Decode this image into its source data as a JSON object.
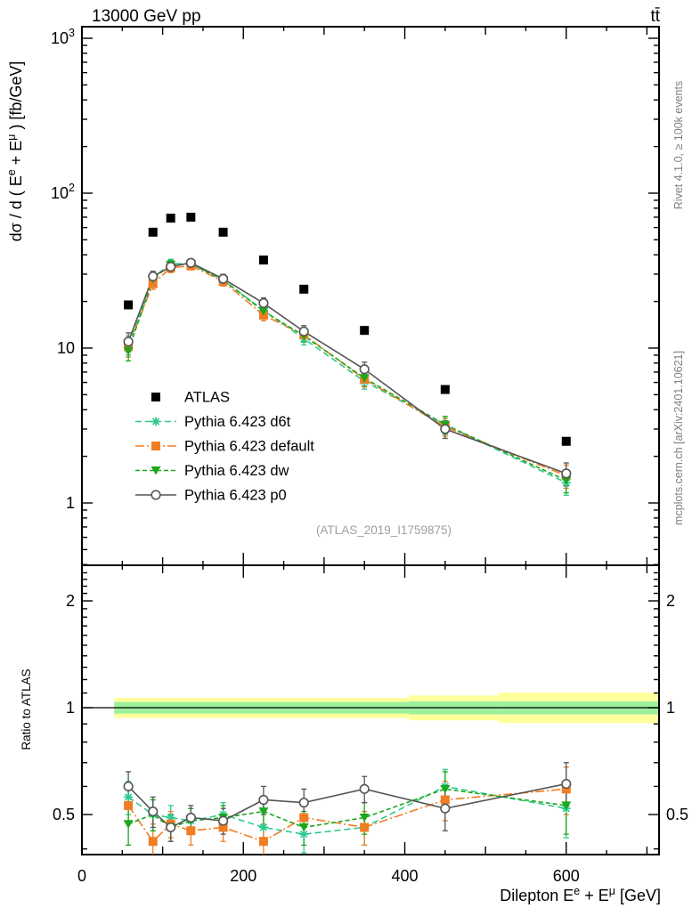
{
  "header": {
    "left_title": "13000 GeV pp",
    "right_title": "tt̄"
  },
  "right_notes": {
    "top": "Rivet 4.1.0, ≥ 100k events",
    "bottom": "mcplots.cern.ch [arXiv:2401.10621]"
  },
  "watermark": "(ATLAS_2019_I1759875)",
  "labels": {
    "main_y_rich": [
      {
        "t": "dσ / d ( E"
      },
      {
        "t": "e",
        "sup": true
      },
      {
        "t": " + E"
      },
      {
        "t": "μ",
        "sup": true
      },
      {
        "t": " ) [fb/GeV]"
      }
    ],
    "x_rich": [
      {
        "t": "Dilepton E"
      },
      {
        "t": "e",
        "sup": true
      },
      {
        "t": " + E"
      },
      {
        "t": "μ",
        "sup": true
      },
      {
        "t": " [GeV]"
      }
    ],
    "ratio_y": "Ratio to ATLAS"
  },
  "colors": {
    "frame": "#000000",
    "atlas": "#000000",
    "d6t": "#2ec98e",
    "default": "#f07d23",
    "dw": "#1ca71c",
    "p0": "#555555",
    "band_yellow": "#ffff9c",
    "band_green": "#9cf09c",
    "note_gray": "#7f7f7f",
    "watermark_gray": "#a0a0a0"
  },
  "legend": [
    {
      "series": "atlas",
      "label": "ATLAS"
    },
    {
      "series": "d6t",
      "label": "Pythia 6.423 d6t"
    },
    {
      "series": "default",
      "label": "Pythia 6.423 default"
    },
    {
      "series": "dw",
      "label": "Pythia 6.423 dw"
    },
    {
      "series": "p0",
      "label": "Pythia 6.423 p0"
    }
  ],
  "chart_data": {
    "type": "scatter",
    "title": "13000 GeV pp  (tt̄ production)",
    "analysis": "(ATLAS_2019_I1759875)",
    "xlabel": "Dilepton E^e + E^μ [GeV]",
    "ylabel_main": "dσ / d ( E^e + E^μ ) [fb/GeV]",
    "ylabel_ratio": "Ratio to ATLAS",
    "x_range": [
      0,
      715
    ],
    "y_range_main": [
      0.4,
      1200
    ],
    "y_scale_main": "log10",
    "y_range_ratio": [
      0.386,
      2.52
    ],
    "y_scale_ratio": "log2",
    "grid": false,
    "legend_position": "middle-left",
    "x": [
      57.5,
      88,
      110,
      135,
      175,
      225,
      275,
      350,
      450,
      600
    ],
    "xticks": {
      "major": [
        0,
        200,
        400,
        600
      ],
      "major_labels": [
        "0",
        "200",
        "400",
        "600"
      ],
      "medium": [
        100,
        300,
        500,
        700
      ],
      "minor_step": 50
    },
    "yticks_main": [
      {
        "v": 1,
        "base": "1",
        "exp": null
      },
      {
        "v": 10,
        "base": "10",
        "exp": null
      },
      {
        "v": 100,
        "base": "10",
        "exp": "2"
      },
      {
        "v": 1000,
        "base": "10",
        "exp": "3"
      }
    ],
    "yticks_ratio": {
      "major": [
        0.5,
        1,
        2
      ],
      "major_labels": [
        "0.5",
        "1",
        "2"
      ],
      "minor": [
        0.4,
        0.6,
        0.7,
        0.8,
        0.9,
        1.1,
        1.2,
        1.3,
        1.4,
        1.5,
        1.6,
        1.7,
        1.8,
        1.9,
        2.1,
        2.2,
        2.3,
        2.4
      ]
    },
    "yerr_rel": [
      0.14,
      0.08,
      0.07,
      0.06,
      0.07,
      0.08,
      0.09,
      0.11,
      0.13,
      0.17
    ],
    "ratio_err": [
      0.06,
      0.05,
      0.04,
      0.04,
      0.04,
      0.05,
      0.05,
      0.05,
      0.07,
      0.09
    ],
    "series": [
      {
        "id": "atlas",
        "label": "ATLAS",
        "color": "#000000",
        "marker": "square",
        "line": "none",
        "values": [
          19,
          56,
          69,
          70,
          56,
          37,
          24,
          13,
          5.4,
          2.5
        ]
      },
      {
        "id": "d6t",
        "label": "Pythia 6.423 d6t",
        "color": "#2ec98e",
        "marker": "star",
        "line": "dash",
        "values": [
          10.5,
          28.5,
          35,
          35,
          27.5,
          17.5,
          11.5,
          6.1,
          3.2,
          1.35
        ],
        "ratio": [
          0.56,
          0.5,
          0.49,
          0.48,
          0.5,
          0.46,
          0.44,
          0.46,
          0.6,
          0.52
        ]
      },
      {
        "id": "default",
        "label": "Pythia 6.423 default",
        "color": "#f07d23",
        "marker": "square",
        "line": "dashdot",
        "values": [
          10.2,
          26,
          33,
          34,
          27,
          16.3,
          12.2,
          6.3,
          3.1,
          1.5
        ],
        "ratio": [
          0.53,
          0.42,
          0.47,
          0.45,
          0.46,
          0.42,
          0.49,
          0.46,
          0.55,
          0.59
        ]
      },
      {
        "id": "dw",
        "label": "Pythia 6.423 dw",
        "color": "#1ca71c",
        "marker": "triangle-down",
        "line": "dash2",
        "values": [
          9.6,
          28,
          34.5,
          35,
          27.5,
          17.3,
          12.0,
          6.4,
          3.2,
          1.4
        ],
        "ratio": [
          0.47,
          0.5,
          0.46,
          0.48,
          0.49,
          0.51,
          0.46,
          0.49,
          0.59,
          0.53
        ]
      },
      {
        "id": "p0",
        "label": "Pythia 6.423 p0",
        "color": "#555555",
        "marker": "circle-open",
        "line": "solid",
        "values": [
          11,
          29,
          33.5,
          35.5,
          28,
          19.5,
          12.8,
          7.3,
          3.0,
          1.55
        ],
        "ratio": [
          0.6,
          0.51,
          0.46,
          0.49,
          0.48,
          0.55,
          0.54,
          0.59,
          0.52,
          0.61
        ]
      }
    ],
    "ratio_band": {
      "start_x": 40,
      "segments": [
        {
          "x0": 40,
          "x1": 405,
          "yellow": [
            0.935,
            1.066
          ],
          "green": [
            0.962,
            1.038
          ]
        },
        {
          "x0": 405,
          "x1": 516,
          "yellow": [
            0.921,
            1.082
          ],
          "green": [
            0.958,
            1.042
          ]
        },
        {
          "x0": 516,
          "x1": 715,
          "yellow": [
            0.905,
            1.103
          ],
          "green": [
            0.958,
            1.042
          ]
        }
      ],
      "reference_line": 1.0
    }
  }
}
